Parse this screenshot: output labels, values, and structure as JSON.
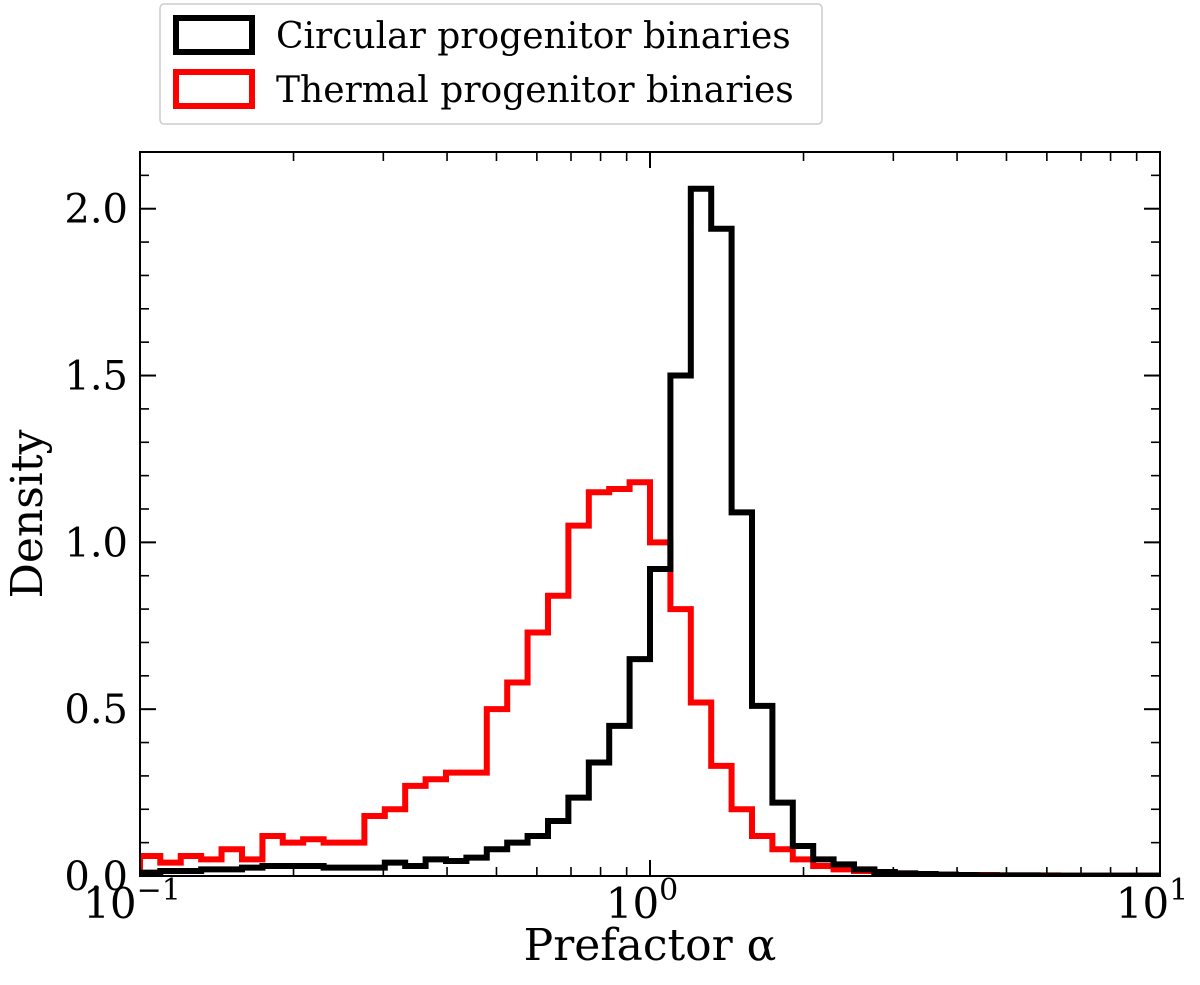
{
  "chart_data": {
    "type": "histogram",
    "xlabel": "Prefactor α",
    "ylabel": "Density",
    "xscale": "log",
    "xlim": [
      0.1,
      10
    ],
    "ylim": [
      0,
      2.17
    ],
    "grid": false,
    "legend_position": "above-top-left",
    "x_ticks": [
      {
        "value": 0.1,
        "base": "10",
        "exp": "−1"
      },
      {
        "value": 1,
        "base": "10",
        "exp": "0"
      },
      {
        "value": 10,
        "base": "10",
        "exp": "1"
      }
    ],
    "y_ticks": [
      {
        "value": 0,
        "label": "0.0"
      },
      {
        "value": 0.5,
        "label": "0.5"
      },
      {
        "value": 1.0,
        "label": "1.0"
      },
      {
        "value": 1.5,
        "label": "1.5"
      },
      {
        "value": 2.0,
        "label": "2.0"
      }
    ],
    "bin_edges": [
      0.1,
      0.1096,
      0.1202,
      0.1318,
      0.1445,
      0.1585,
      0.1738,
      0.1905,
      0.2089,
      0.2291,
      0.2512,
      0.2754,
      0.302,
      0.3311,
      0.3631,
      0.3981,
      0.4365,
      0.4786,
      0.5248,
      0.5754,
      0.631,
      0.6918,
      0.7586,
      0.8318,
      0.912,
      1.0,
      1.0965,
      1.2023,
      1.3183,
      1.4454,
      1.5849,
      1.7378,
      1.9055,
      2.0893,
      2.2909,
      2.5119,
      2.7542,
      3.02,
      3.3113,
      3.6308,
      3.9811,
      4.3652,
      4.7863,
      5.2481,
      5.7544,
      6.3096,
      6.9183,
      7.5858,
      8.3176,
      9.1201,
      10.0
    ],
    "series": [
      {
        "name": "Circular progenitor binaries",
        "color": "#000000",
        "values": [
          0.01,
          0.015,
          0.015,
          0.02,
          0.02,
          0.025,
          0.03,
          0.03,
          0.03,
          0.025,
          0.025,
          0.025,
          0.04,
          0.03,
          0.05,
          0.045,
          0.055,
          0.08,
          0.1,
          0.12,
          0.165,
          0.235,
          0.34,
          0.45,
          0.65,
          0.92,
          1.5,
          2.06,
          1.94,
          1.09,
          0.51,
          0.22,
          0.09,
          0.05,
          0.035,
          0.02,
          0.012,
          0.008,
          0.006,
          0.004,
          0.003,
          0.002,
          0.002,
          0.002,
          0.001,
          0.001,
          0.001,
          0.001,
          0.001,
          0.001
        ]
      },
      {
        "name": "Thermal progenitor binaries",
        "color": "#ff0000",
        "values": [
          0.06,
          0.04,
          0.06,
          0.05,
          0.08,
          0.05,
          0.12,
          0.1,
          0.11,
          0.1,
          0.1,
          0.18,
          0.2,
          0.27,
          0.29,
          0.31,
          0.31,
          0.5,
          0.58,
          0.73,
          0.84,
          1.05,
          1.15,
          1.16,
          1.18,
          1.0,
          0.8,
          0.52,
          0.33,
          0.2,
          0.12,
          0.08,
          0.05,
          0.03,
          0.02,
          0.015,
          0.01,
          0.008,
          0.006,
          0.004,
          0.003,
          0.003,
          0.002,
          0.002,
          0.002,
          0.001,
          0.001,
          0.001,
          0.001,
          0.001
        ]
      }
    ]
  }
}
